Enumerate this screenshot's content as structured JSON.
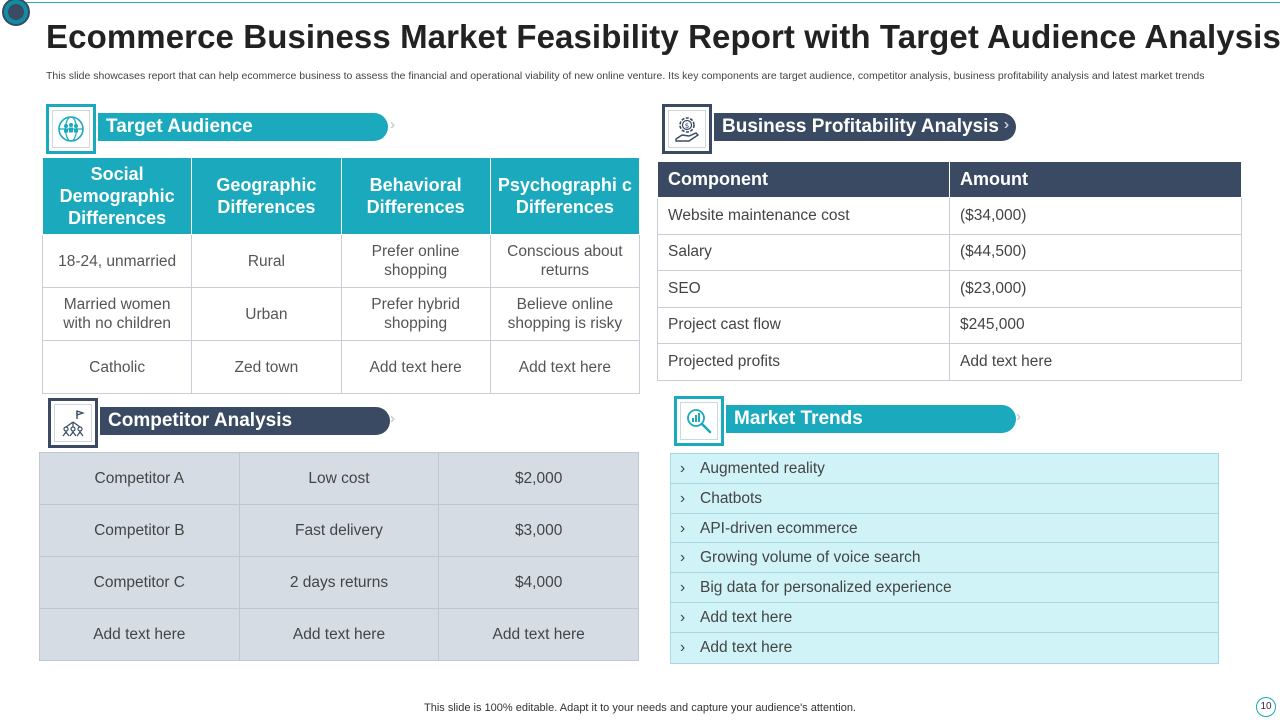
{
  "slide": {
    "title": "Ecommerce Business Market Feasibility Report with Target Audience Analysis",
    "subtitle": "This slide showcases report that can help ecommerce business to assess the financial and operational viability of new online venture. Its key components are target audience, competitor analysis, business profitability analysis and latest market trends",
    "footer": "This slide is 100% editable. Adapt it to your needs and capture your audience's attention.",
    "page_number": "10"
  },
  "colors": {
    "teal": "#1aa9bd",
    "navy": "#3a4a63",
    "light_teal": "#cff3f7",
    "light_gray": "#d5dce4"
  },
  "target_audience": {
    "heading": "Target Audience",
    "icon": "people-globe-icon",
    "columns": [
      "Social Demographic Differences",
      "Geographic Differences",
      "Behavioral Differences",
      "Psychographi c Differences"
    ],
    "rows": [
      [
        "18-24, unmarried",
        "Rural",
        "Prefer online shopping",
        "Conscious about returns"
      ],
      [
        "Married women with no children",
        "Urban",
        "Prefer hybrid shopping",
        "Believe online shopping is risky"
      ],
      [
        "Catholic",
        "Zed town",
        "Add text here",
        "Add text here"
      ]
    ]
  },
  "profitability": {
    "heading": "Business Profitability Analysis",
    "icon": "dollar-gear-hand-icon",
    "columns": [
      "Component",
      "Amount"
    ],
    "rows": [
      [
        "Website maintenance  cost",
        "($34,000)"
      ],
      [
        "Salary",
        "($44,500)"
      ],
      [
        "SEO",
        "($23,000)"
      ],
      [
        "Project cast flow",
        "$245,000"
      ],
      [
        "Projected profits",
        "Add text here"
      ]
    ]
  },
  "competitor": {
    "heading": "Competitor Analysis",
    "icon": "strategy-team-icon",
    "rows": [
      [
        "Competitor A",
        "Low cost",
        "$2,000"
      ],
      [
        "Competitor B",
        "Fast delivery",
        "$3,000"
      ],
      [
        "Competitor C",
        "2 days returns",
        "$4,000"
      ],
      [
        "Add text here",
        "Add text here",
        "Add text here"
      ]
    ]
  },
  "market_trends": {
    "heading": "Market Trends",
    "icon": "magnifier-chart-icon",
    "bullet": "›",
    "items": [
      "Augmented reality",
      "Chatbots",
      "API-driven ecommerce",
      "Growing volume  of voice search",
      "Big data for personalized experience",
      "Add text here",
      "Add text here"
    ]
  },
  "decor": {
    "chevrons": "››››››››"
  }
}
